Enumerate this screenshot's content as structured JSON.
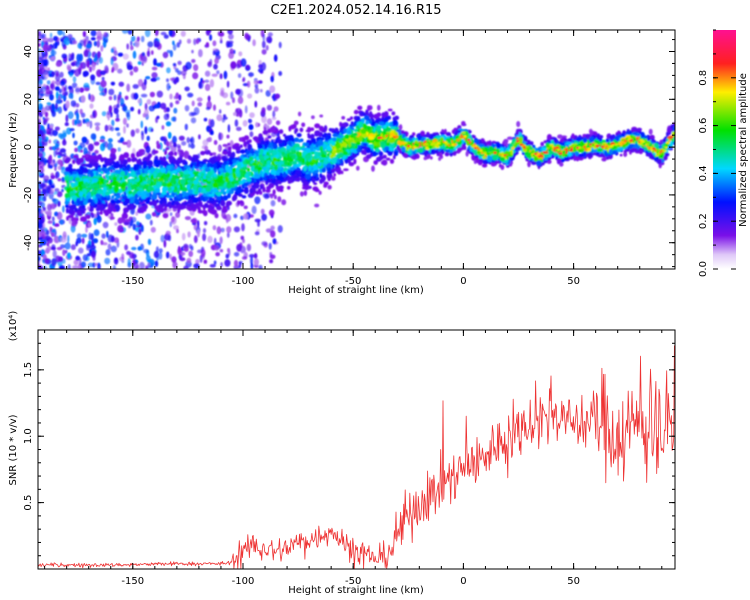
{
  "figure": {
    "title": "C2E1.2024.052.14.16.R15"
  },
  "colors": {
    "signal": "#ee3333",
    "axis": "#000000",
    "background": "#ffffff"
  },
  "chart_data": [
    {
      "type": "heatmap",
      "xlabel": "Height of straight line (km)",
      "ylabel": "Frequency (Hz)",
      "xlim": [
        -193,
        96
      ],
      "ylim": [
        -51,
        49
      ],
      "xticks": [
        -150,
        -100,
        -50,
        0,
        50
      ],
      "yticks": [
        -40,
        -20,
        0,
        20,
        40
      ],
      "colorbar": {
        "label": "Normalized spectral amplitude",
        "range": [
          0,
          1
        ],
        "ticks": [
          0.0,
          0.2,
          0.4,
          0.6,
          0.8
        ],
        "colormap": "rainbow (white-violet-blue-cyan-green-yellow-red-magenta)"
      },
      "ridge": {
        "x": [
          -172,
          -160,
          -150,
          -140,
          -130,
          -120,
          -110,
          -100,
          -90,
          -80,
          -75,
          -70,
          -60,
          -50,
          -45,
          -40,
          -35,
          -30,
          -25,
          -20,
          -15,
          -10,
          -5,
          0,
          5,
          10,
          15,
          20,
          25,
          30,
          35,
          40,
          45,
          50,
          55,
          60,
          65,
          70,
          75,
          80,
          85,
          90,
          95
        ],
        "y": [
          -17,
          -15,
          -16,
          -14,
          -15,
          -14,
          -15,
          -10,
          -6,
          -5,
          -3,
          -6,
          -2,
          3,
          7,
          3,
          5,
          4,
          0,
          1,
          1,
          2,
          1,
          5,
          0,
          -3,
          -2,
          -4,
          3,
          -2,
          -4,
          0,
          -2,
          0,
          0,
          1,
          0,
          1,
          3,
          3,
          0,
          -3,
          5
        ]
      }
    },
    {
      "type": "line",
      "xlabel": "Height of straight line (km)",
      "ylabel": "SNR (10 * v/v)",
      "yunit": "(x10⁴)",
      "xlim": [
        -193,
        96
      ],
      "ylim": [
        0,
        1.8
      ],
      "xticks": [
        -150,
        -100,
        -50,
        0,
        50
      ],
      "yticks": [
        0.5,
        1.0,
        1.5
      ],
      "series": [
        {
          "x": [
            -193,
            -160,
            -130,
            -110,
            -105,
            -100,
            -95,
            -90,
            -85,
            -80,
            -75,
            -70,
            -65,
            -60,
            -55,
            -50,
            -45,
            -40,
            -35,
            -30,
            -25,
            -20,
            -15,
            -10,
            -5,
            0,
            5,
            10,
            15,
            20,
            25,
            30,
            35,
            40,
            45,
            50,
            55,
            60,
            65,
            70,
            75,
            80,
            85,
            90,
            96
          ],
          "values": [
            0.03,
            0.03,
            0.04,
            0.04,
            0.05,
            0.12,
            0.18,
            0.15,
            0.13,
            0.16,
            0.2,
            0.22,
            0.25,
            0.3,
            0.2,
            0.15,
            0.12,
            0.08,
            0.1,
            0.25,
            0.4,
            0.5,
            0.55,
            0.65,
            0.7,
            0.75,
            0.78,
            0.85,
            0.95,
            1.0,
            1.05,
            1.1,
            1.15,
            1.2,
            1.15,
            1.1,
            1.1,
            1.15,
            1.1,
            1.0,
            1.05,
            1.1,
            1.15,
            1.05,
            1.1
          ]
        }
      ]
    }
  ]
}
